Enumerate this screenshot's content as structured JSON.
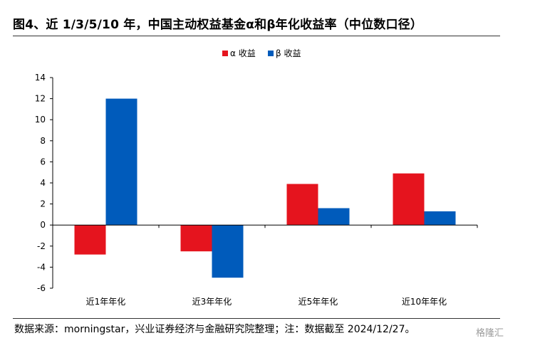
{
  "figure": {
    "title": "图4、近 1/3/5/10 年，中国主动权益基金α和β年化收益率（中位数口径）",
    "source": "数据来源：morningstar，兴业证券经济与金融研究院整理；注：数据截至 2024/12/27。",
    "watermark": "格隆汇"
  },
  "chart_data": {
    "type": "bar",
    "categories": [
      "近1年年化",
      "近3年年化",
      "近5年年化",
      "近10年年化"
    ],
    "series": [
      {
        "name": "α 收益",
        "color": "#e5141e",
        "values": [
          -2.8,
          -2.5,
          3.9,
          4.9
        ]
      },
      {
        "name": "β 收益",
        "color": "#005bbb",
        "values": [
          12.0,
          -5.0,
          1.6,
          1.3
        ]
      }
    ],
    "ylim": [
      -6,
      14
    ],
    "yticks": [
      -6,
      -4,
      -2,
      0,
      2,
      4,
      6,
      8,
      10,
      12,
      14
    ],
    "legend_position": "top-center",
    "grid": false
  }
}
